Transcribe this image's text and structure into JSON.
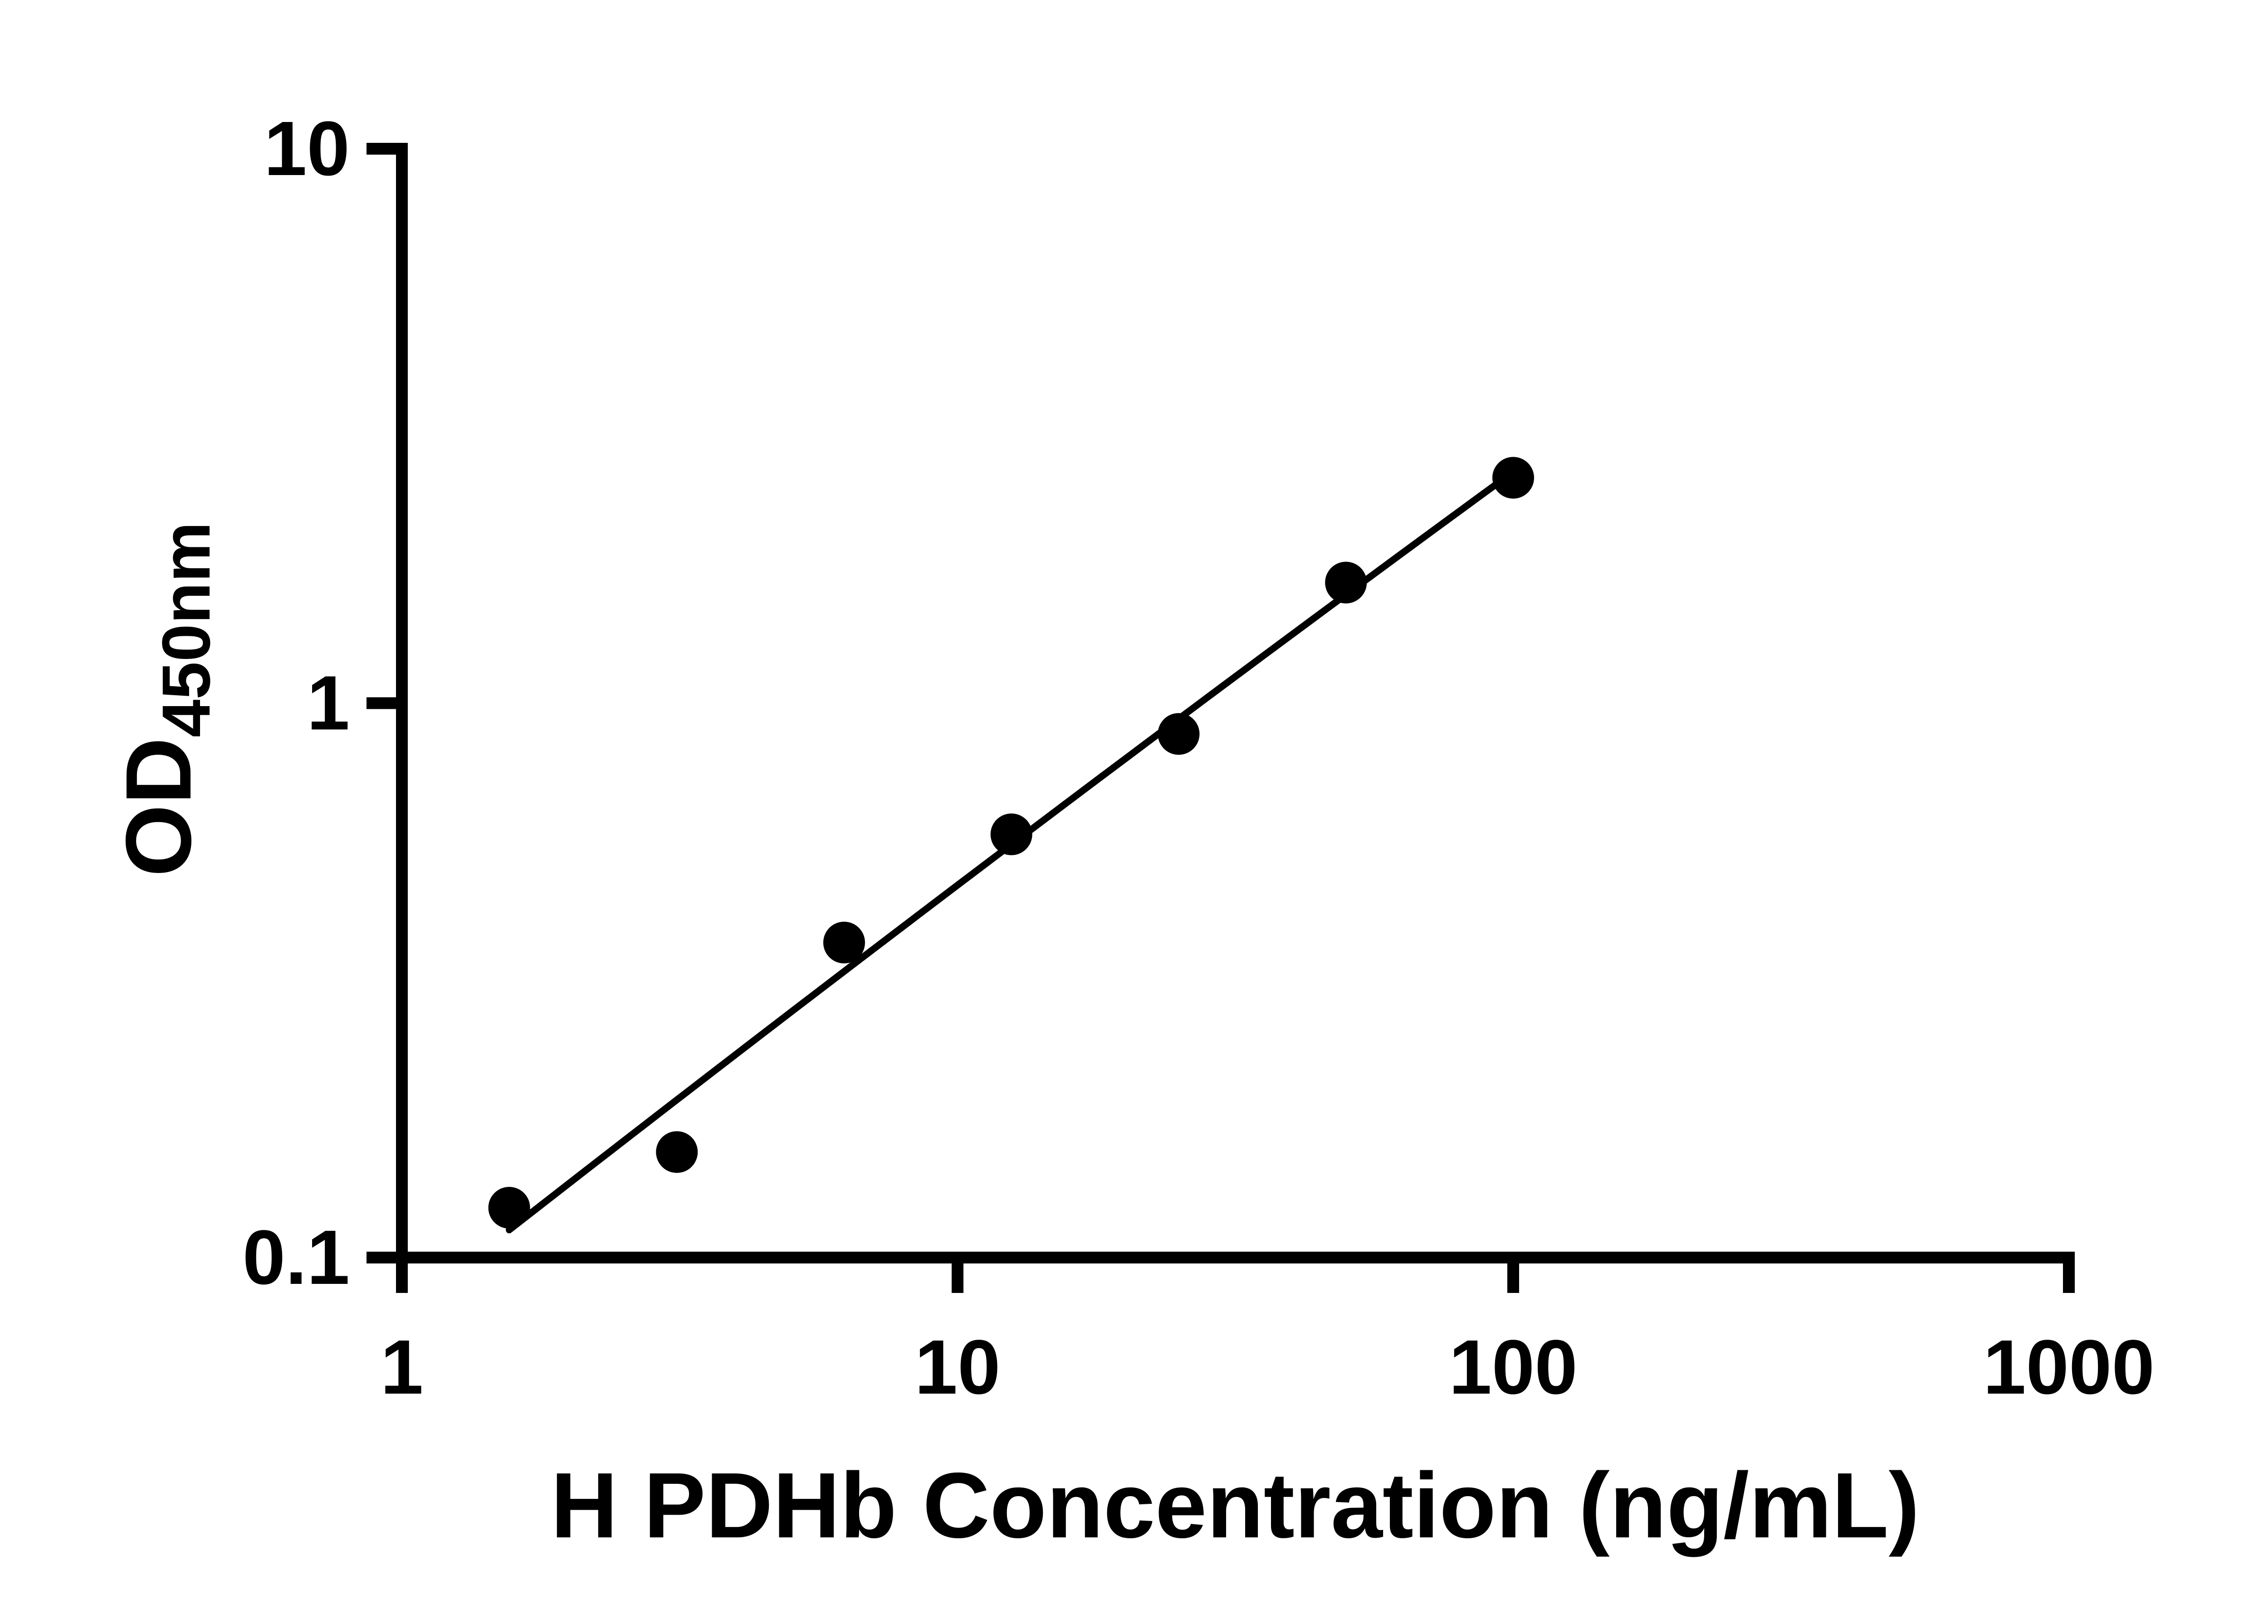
{
  "chart_data": {
    "type": "scatter",
    "x": [
      1.56,
      3.125,
      6.25,
      12.5,
      25,
      50,
      100
    ],
    "y": [
      0.123,
      0.155,
      0.37,
      0.58,
      0.88,
      1.65,
      2.55
    ],
    "xlabel": "H PDHb Concentration (ng/mL)",
    "ylabel_main": "OD",
    "ylabel_sub": "450nm",
    "x_scale": "log",
    "y_scale": "log",
    "xlim": [
      1,
      1000
    ],
    "ylim": [
      0.1,
      10
    ],
    "x_ticks": [
      {
        "value": 1,
        "label": "1"
      },
      {
        "value": 10,
        "label": "10"
      },
      {
        "value": 100,
        "label": "100"
      },
      {
        "value": 1000,
        "label": "1000"
      }
    ],
    "y_ticks": [
      {
        "value": 0.1,
        "label": "0.1"
      },
      {
        "value": 1,
        "label": "1"
      },
      {
        "value": 10,
        "label": "10"
      }
    ],
    "grid": false,
    "legend": "none",
    "trend_line": true,
    "marker_color": "#000000",
    "line_color": "#000000",
    "background_color": "#ffffff"
  }
}
